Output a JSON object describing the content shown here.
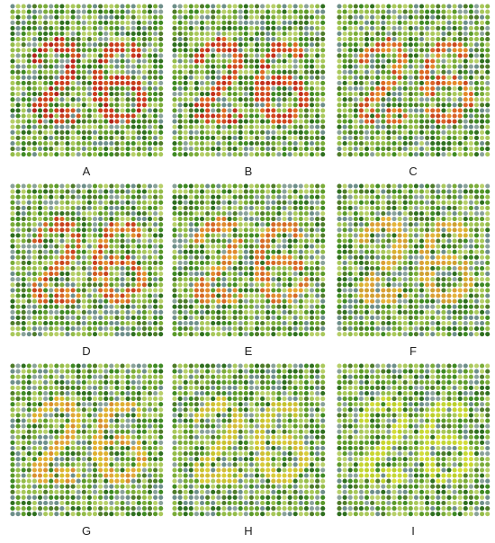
{
  "plates": [
    {
      "label": "A",
      "digits": "26",
      "stroke_colors": [
        "#b4241c",
        "#cc3a1e",
        "#d2561e",
        "#c8401c"
      ]
    },
    {
      "label": "B",
      "digits": "26",
      "stroke_colors": [
        "#c2301c",
        "#d2481e",
        "#de6a22",
        "#cf4a20"
      ]
    },
    {
      "label": "C",
      "digits": "26",
      "stroke_colors": [
        "#cc4a1e",
        "#dc6a24",
        "#e38a2a",
        "#d9642a"
      ]
    },
    {
      "label": "D",
      "digits": "26",
      "stroke_colors": [
        "#c8421e",
        "#d86a26",
        "#e1902c",
        "#cf5a22"
      ]
    },
    {
      "label": "E",
      "digits": "26",
      "stroke_colors": [
        "#d66a26",
        "#e08a2e",
        "#e6a632",
        "#d47a2a"
      ]
    },
    {
      "label": "F",
      "digits": "26",
      "stroke_colors": [
        "#dba036",
        "#e4b43c",
        "#d8b030",
        "#cfa032"
      ]
    },
    {
      "label": "G",
      "digits": "26",
      "stroke_colors": [
        "#d89030",
        "#dfb030",
        "#d6c02e",
        "#e0a83a"
      ]
    },
    {
      "label": "H",
      "digits": "26",
      "stroke_colors": [
        "#cfc034",
        "#d8cc3a",
        "#c6c430",
        "#d2bc38"
      ]
    },
    {
      "label": "I",
      "digits": "26",
      "stroke_colors": [
        "#c8d630",
        "#d2dc3a",
        "#bcd02c",
        "#c4d836"
      ]
    }
  ],
  "background_dot_colors": [
    "#2f6f1f",
    "#3f8a24",
    "#5b9a2a",
    "#7aac3a",
    "#94bc4a",
    "#a9c85c",
    "#6e8f8a",
    "#8aa29a",
    "#4f7c2a",
    "#b7cf6a"
  ]
}
